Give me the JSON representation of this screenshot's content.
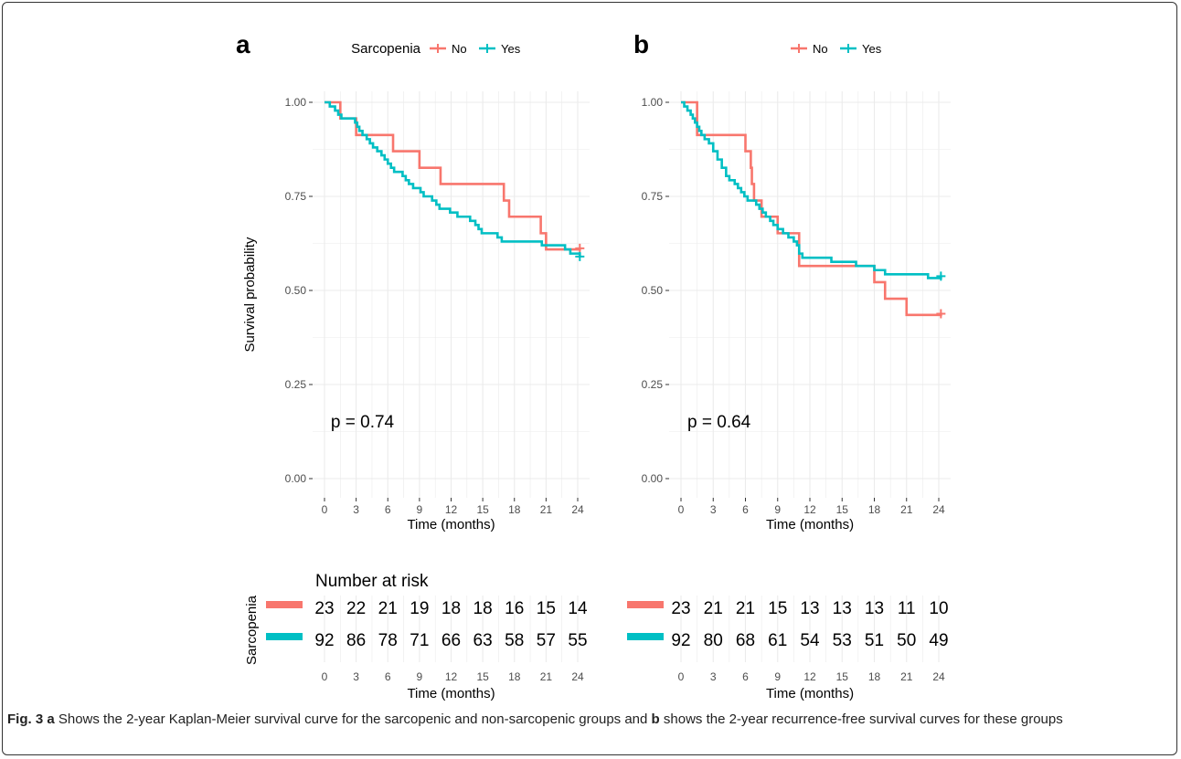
{
  "figure": {
    "caption": {
      "label": "Fig. 3",
      "parts": [
        {
          "bold": true,
          "text": "a"
        },
        {
          "bold": false,
          "text": " Shows the 2-year Kaplan-Meier survival curve for the sarcopenic and non-sarcopenic groups and "
        },
        {
          "bold": true,
          "text": "b"
        },
        {
          "bold": false,
          "text": " shows the 2-year recurrence-free survival curves for these groups"
        }
      ]
    },
    "colors": {
      "no": "#F8766D",
      "yes": "#00BFC4"
    }
  },
  "chart_data": [
    {
      "panel": "a",
      "type": "line",
      "legend_title": "Sarcopenia",
      "legend_placement": "top",
      "xlabel": "Time (months)",
      "ylabel": "Survival probability",
      "xlim": [
        0,
        24
      ],
      "ylim": [
        0,
        1
      ],
      "xticks": [
        "0",
        "3",
        "6",
        "9",
        "12",
        "15",
        "18",
        "21",
        "24"
      ],
      "yticks": [
        "0.00",
        "0.25",
        "0.50",
        "0.75",
        "1.00"
      ],
      "grid": true,
      "annotation": "p = 0.74",
      "series": [
        {
          "name": "No",
          "color": "#F8766D",
          "steps": [
            [
              0,
              1.0
            ],
            [
              1.5,
              0.957
            ],
            [
              3.0,
              0.913
            ],
            [
              6.5,
              0.87
            ],
            [
              9.0,
              0.826
            ],
            [
              11.0,
              0.783
            ],
            [
              17.0,
              0.739
            ],
            [
              17.5,
              0.696
            ],
            [
              20.5,
              0.652
            ],
            [
              21.0,
              0.609
            ],
            [
              24.2,
              0.612
            ]
          ],
          "censor": [
            24.2,
            0.612
          ]
        },
        {
          "name": "Yes",
          "color": "#00BFC4",
          "steps": [
            [
              0,
              1.0
            ],
            [
              0.5,
              0.989
            ],
            [
              1.0,
              0.978
            ],
            [
              1.3,
              0.967
            ],
            [
              1.6,
              0.957
            ],
            [
              2.9,
              0.946
            ],
            [
              3.1,
              0.935
            ],
            [
              3.3,
              0.924
            ],
            [
              3.6,
              0.913
            ],
            [
              4.0,
              0.902
            ],
            [
              4.3,
              0.891
            ],
            [
              4.6,
              0.88
            ],
            [
              5.0,
              0.87
            ],
            [
              5.4,
              0.859
            ],
            [
              5.7,
              0.848
            ],
            [
              6.0,
              0.837
            ],
            [
              6.3,
              0.826
            ],
            [
              6.6,
              0.815
            ],
            [
              7.4,
              0.804
            ],
            [
              7.7,
              0.793
            ],
            [
              8.0,
              0.783
            ],
            [
              8.4,
              0.772
            ],
            [
              9.1,
              0.761
            ],
            [
              9.4,
              0.75
            ],
            [
              10.2,
              0.739
            ],
            [
              10.6,
              0.728
            ],
            [
              10.9,
              0.717
            ],
            [
              11.9,
              0.707
            ],
            [
              12.6,
              0.696
            ],
            [
              13.8,
              0.685
            ],
            [
              14.3,
              0.674
            ],
            [
              14.6,
              0.663
            ],
            [
              14.9,
              0.652
            ],
            [
              16.4,
              0.641
            ],
            [
              16.8,
              0.63
            ],
            [
              20.6,
              0.62
            ],
            [
              22.8,
              0.609
            ],
            [
              23.3,
              0.598
            ],
            [
              24.2,
              0.59
            ]
          ],
          "censor": [
            24.2,
            0.59
          ]
        }
      ],
      "risk_table": {
        "title": "Number at risk",
        "strata_label": "Sarcopenia",
        "xlabel": "Time (months)",
        "times": [
          "0",
          "3",
          "6",
          "9",
          "12",
          "15",
          "18",
          "21",
          "24"
        ],
        "rows": [
          {
            "name": "No",
            "values": [
              "23",
              "22",
              "21",
              "19",
              "18",
              "18",
              "16",
              "15",
              "14"
            ]
          },
          {
            "name": "Yes",
            "values": [
              "92",
              "86",
              "78",
              "71",
              "66",
              "63",
              "58",
              "57",
              "55"
            ]
          }
        ]
      }
    },
    {
      "panel": "b",
      "type": "line",
      "legend_title": "",
      "legend_placement": "top",
      "xlabel": "Time (months)",
      "ylabel": "",
      "xlim": [
        0,
        24
      ],
      "ylim": [
        0,
        1
      ],
      "xticks": [
        "0",
        "3",
        "6",
        "9",
        "12",
        "15",
        "18",
        "21",
        "24"
      ],
      "yticks": [
        "0.00",
        "0.25",
        "0.50",
        "0.75",
        "1.00"
      ],
      "grid": true,
      "annotation": "p = 0.64",
      "series": [
        {
          "name": "No",
          "color": "#F8766D",
          "steps": [
            [
              0,
              1.0
            ],
            [
              0.5,
              1.0
            ],
            [
              1.5,
              0.913
            ],
            [
              6.0,
              0.87
            ],
            [
              6.5,
              0.826
            ],
            [
              6.6,
              0.783
            ],
            [
              6.8,
              0.739
            ],
            [
              7.5,
              0.696
            ],
            [
              9.0,
              0.652
            ],
            [
              11.0,
              0.565
            ],
            [
              18.0,
              0.522
            ],
            [
              19.0,
              0.478
            ],
            [
              21.0,
              0.435
            ],
            [
              24.2,
              0.438
            ]
          ],
          "censor": [
            24.2,
            0.438
          ]
        },
        {
          "name": "Yes",
          "color": "#00BFC4",
          "steps": [
            [
              0,
              1.0
            ],
            [
              0.3,
              0.989
            ],
            [
              0.6,
              0.978
            ],
            [
              0.9,
              0.967
            ],
            [
              1.1,
              0.957
            ],
            [
              1.3,
              0.946
            ],
            [
              1.5,
              0.935
            ],
            [
              1.7,
              0.924
            ],
            [
              1.9,
              0.913
            ],
            [
              2.2,
              0.902
            ],
            [
              2.6,
              0.891
            ],
            [
              3.0,
              0.87
            ],
            [
              3.4,
              0.848
            ],
            [
              3.8,
              0.826
            ],
            [
              4.2,
              0.804
            ],
            [
              4.5,
              0.793
            ],
            [
              5.0,
              0.783
            ],
            [
              5.3,
              0.772
            ],
            [
              5.6,
              0.761
            ],
            [
              5.9,
              0.75
            ],
            [
              6.2,
              0.739
            ],
            [
              7.0,
              0.728
            ],
            [
              7.3,
              0.717
            ],
            [
              7.6,
              0.707
            ],
            [
              7.9,
              0.696
            ],
            [
              8.3,
              0.685
            ],
            [
              8.6,
              0.674
            ],
            [
              9.0,
              0.663
            ],
            [
              9.5,
              0.652
            ],
            [
              10.0,
              0.641
            ],
            [
              10.5,
              0.63
            ],
            [
              10.8,
              0.62
            ],
            [
              11.0,
              0.598
            ],
            [
              11.3,
              0.587
            ],
            [
              14.0,
              0.576
            ],
            [
              16.3,
              0.565
            ],
            [
              18.0,
              0.554
            ],
            [
              19.0,
              0.543
            ],
            [
              23.0,
              0.533
            ],
            [
              24.2,
              0.538
            ]
          ],
          "censor": [
            24.2,
            0.538
          ]
        }
      ],
      "risk_table": {
        "title": "",
        "strata_label": "",
        "xlabel": "Time (months)",
        "times": [
          "0",
          "3",
          "6",
          "9",
          "12",
          "15",
          "18",
          "21",
          "24"
        ],
        "rows": [
          {
            "name": "No",
            "values": [
              "23",
              "21",
              "21",
              "15",
              "13",
              "13",
              "13",
              "11",
              "10"
            ]
          },
          {
            "name": "Yes",
            "values": [
              "92",
              "80",
              "68",
              "61",
              "54",
              "53",
              "51",
              "50",
              "49"
            ]
          }
        ]
      }
    }
  ],
  "panels_labels": [
    "a",
    "b"
  ]
}
